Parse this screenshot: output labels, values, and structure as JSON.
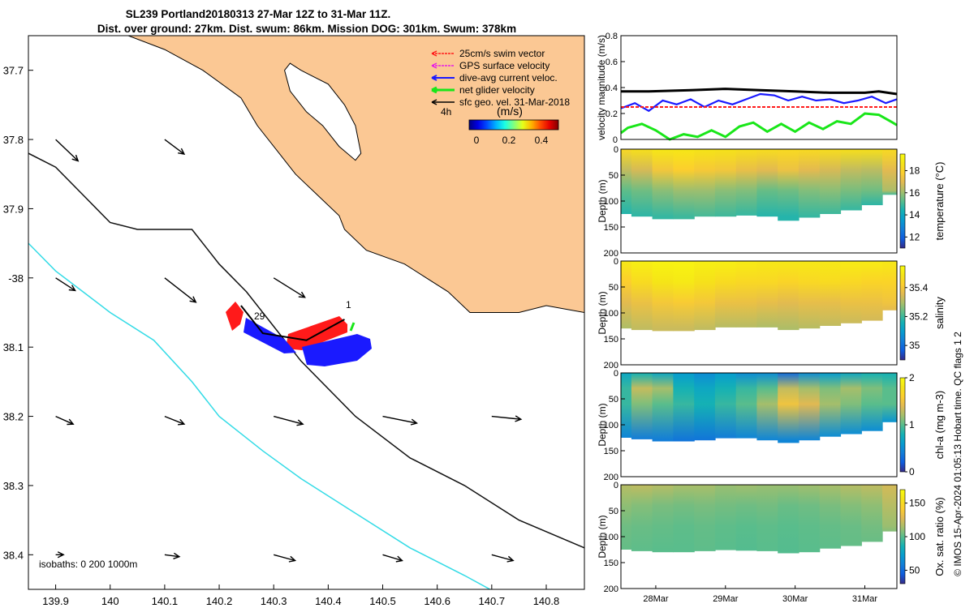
{
  "title": {
    "line1": "SL239 Portland20180313 27-Mar 12Z to 31-Mar 11Z.",
    "line2": "Dist. over ground: 27km. Dist. swum: 86km. Mission DOG: 301km. Swum: 378km"
  },
  "credit": "© IMOS 15-Apr-2024 01:05:13 Hobart time. QC flags 1  2",
  "colors": {
    "land": "#fbc894",
    "iso200": "#111111",
    "iso1000": "#33dbe6",
    "swim": "#ff1a1a",
    "gps": "#e61ae6",
    "diveavg": "#1a1aff",
    "netglider": "#19e619",
    "geovel": "#000000"
  },
  "chart_data": [
    {
      "type": "scatter",
      "name": "map",
      "xlim": [
        139.85,
        140.87
      ],
      "ylim": [
        -38.45,
        -37.65
      ],
      "xticks": [
        139.9,
        140,
        140.1,
        140.2,
        140.3,
        140.4,
        140.5,
        140.6,
        140.7,
        140.8
      ],
      "xtick_labels": [
        "139.9",
        "140",
        "140.1",
        "140.2",
        "140.3",
        "140.4",
        "140.5",
        "140.6",
        "140.7",
        "140.8"
      ],
      "yticks": [
        -37.7,
        -37.8,
        -37.9,
        -38,
        -38.1,
        -38.2,
        -38.3,
        -38.4
      ],
      "ytick_labels": [
        "37.7",
        "37.8",
        "37.9",
        "-38",
        "38.1",
        "38.2",
        "38.3",
        "38.4"
      ],
      "legend": [
        {
          "label": "25cm/s swim vector",
          "key": "swim"
        },
        {
          "label": "GPS surface velocity",
          "key": "gps"
        },
        {
          "label": "dive-avg current veloc.",
          "key": "diveavg"
        },
        {
          "label": "net glider velocity",
          "key": "netglider"
        },
        {
          "label": "sfc geo. vel. 31-Mar-2018",
          "key": "geovel"
        }
      ],
      "colorbar": {
        "label": "(m/s)",
        "ticks": [
          "0",
          "0.2",
          "0.4"
        ],
        "range": [
          0,
          0.5
        ]
      },
      "time_label": "4h",
      "isobath_label": "isobaths: 0   200  1000m",
      "track_start_label": "29",
      "track_end_label": "1",
      "coast": [
        [
          140.0,
          -37.64
        ],
        [
          140.1,
          -37.67
        ],
        [
          140.17,
          -37.7
        ],
        [
          140.24,
          -37.74
        ],
        [
          140.27,
          -37.78
        ],
        [
          140.31,
          -37.82
        ],
        [
          140.34,
          -37.85
        ],
        [
          140.38,
          -37.88
        ],
        [
          140.42,
          -37.91
        ],
        [
          140.43,
          -37.93
        ],
        [
          140.47,
          -37.96
        ],
        [
          140.54,
          -37.98
        ],
        [
          140.58,
          -38.0
        ],
        [
          140.62,
          -38.02
        ],
        [
          140.66,
          -38.05
        ],
        [
          140.7,
          -38.05
        ],
        [
          140.75,
          -38.05
        ],
        [
          140.8,
          -38.04
        ],
        [
          140.87,
          -38.05
        ]
      ],
      "lake": [
        [
          140.33,
          -37.69
        ],
        [
          140.35,
          -37.7
        ],
        [
          140.4,
          -37.72
        ],
        [
          140.43,
          -37.75
        ],
        [
          140.45,
          -37.78
        ],
        [
          140.46,
          -37.82
        ],
        [
          140.45,
          -37.83
        ],
        [
          140.42,
          -37.81
        ],
        [
          140.39,
          -37.78
        ],
        [
          140.36,
          -37.76
        ],
        [
          140.33,
          -37.73
        ],
        [
          140.32,
          -37.7
        ]
      ],
      "iso200": [
        [
          139.85,
          -37.82
        ],
        [
          139.9,
          -37.84
        ],
        [
          139.95,
          -37.88
        ],
        [
          140.0,
          -37.92
        ],
        [
          140.05,
          -37.93
        ],
        [
          140.15,
          -37.93
        ],
        [
          140.2,
          -37.98
        ],
        [
          140.25,
          -38.02
        ],
        [
          140.3,
          -38.07
        ],
        [
          140.35,
          -38.12
        ],
        [
          140.45,
          -38.2
        ],
        [
          140.55,
          -38.26
        ],
        [
          140.65,
          -38.3
        ],
        [
          140.75,
          -38.35
        ],
        [
          140.87,
          -38.39
        ]
      ],
      "iso1000": [
        [
          139.85,
          -37.95
        ],
        [
          139.9,
          -37.99
        ],
        [
          139.95,
          -38.02
        ],
        [
          140.0,
          -38.05
        ],
        [
          140.08,
          -38.09
        ],
        [
          140.15,
          -38.15
        ],
        [
          140.2,
          -38.2
        ],
        [
          140.28,
          -38.25
        ],
        [
          140.35,
          -38.29
        ],
        [
          140.45,
          -38.34
        ],
        [
          140.55,
          -38.39
        ],
        [
          140.65,
          -38.43
        ],
        [
          140.72,
          -38.46
        ],
        [
          140.82,
          -38.48
        ],
        [
          140.87,
          -38.5
        ]
      ],
      "glider_track": [
        [
          140.43,
          -38.06
        ],
        [
          140.36,
          -38.09
        ],
        [
          140.28,
          -38.08
        ],
        [
          140.24,
          -38.04
        ]
      ],
      "current_grid": [
        {
          "lon": 139.9,
          "lat": -37.8,
          "u": 0.23,
          "v": -0.22
        },
        {
          "lon": 140.1,
          "lat": -37.8,
          "u": 0.2,
          "v": -0.15
        },
        {
          "lon": 139.9,
          "lat": -38.0,
          "u": 0.2,
          "v": -0.13
        },
        {
          "lon": 140.1,
          "lat": -38.0,
          "u": 0.32,
          "v": -0.25
        },
        {
          "lon": 140.3,
          "lat": -38.0,
          "u": 0.32,
          "v": -0.2
        },
        {
          "lon": 139.9,
          "lat": -38.2,
          "u": 0.18,
          "v": -0.08
        },
        {
          "lon": 140.1,
          "lat": -38.2,
          "u": 0.2,
          "v": -0.08
        },
        {
          "lon": 140.3,
          "lat": -38.2,
          "u": 0.3,
          "v": -0.08
        },
        {
          "lon": 140.5,
          "lat": -38.2,
          "u": 0.35,
          "v": -0.07
        },
        {
          "lon": 140.7,
          "lat": -38.2,
          "u": 0.3,
          "v": -0.03
        },
        {
          "lon": 139.9,
          "lat": -38.4,
          "u": 0.08,
          "v": 0.0
        },
        {
          "lon": 140.1,
          "lat": -38.4,
          "u": 0.15,
          "v": -0.02
        },
        {
          "lon": 140.3,
          "lat": -38.4,
          "u": 0.22,
          "v": -0.06
        },
        {
          "lon": 140.5,
          "lat": -38.4,
          "u": 0.2,
          "v": -0.06
        },
        {
          "lon": 140.7,
          "lat": -38.4,
          "u": 0.22,
          "v": -0.06
        }
      ]
    },
    {
      "type": "line",
      "name": "velocity",
      "ylabel": "velocity magnitude (m/s)",
      "xlim": [
        27.5,
        31.46
      ],
      "ylim": [
        0,
        0.8
      ],
      "yticks": [
        0,
        0.2,
        0.4,
        0.6,
        0.8
      ],
      "ytick_labels": [
        "0",
        "0.2",
        "0.4",
        "0.6",
        "0.8"
      ],
      "series": [
        {
          "name": "sfc geo. vel.",
          "color_key": "geovel",
          "x": [
            27.5,
            27.9,
            28.5,
            29.0,
            29.5,
            30.0,
            30.5,
            31.0,
            31.2,
            31.46
          ],
          "values": [
            0.37,
            0.37,
            0.38,
            0.39,
            0.38,
            0.37,
            0.36,
            0.36,
            0.37,
            0.35
          ]
        },
        {
          "name": "dive-avg current veloc.",
          "color_key": "diveavg",
          "x": [
            27.5,
            27.7,
            27.9,
            28.1,
            28.3,
            28.5,
            28.7,
            28.9,
            29.1,
            29.3,
            29.5,
            29.7,
            29.9,
            30.1,
            30.3,
            30.5,
            30.7,
            30.9,
            31.1,
            31.3,
            31.46
          ],
          "values": [
            0.24,
            0.28,
            0.22,
            0.3,
            0.27,
            0.31,
            0.25,
            0.3,
            0.27,
            0.31,
            0.35,
            0.34,
            0.3,
            0.33,
            0.3,
            0.31,
            0.28,
            0.3,
            0.33,
            0.28,
            0.31
          ]
        },
        {
          "name": "swim vector",
          "color_key": "swim",
          "x": [
            27.5,
            31.46
          ],
          "values": [
            0.25,
            0.25
          ]
        },
        {
          "name": "net glider velocity",
          "color_key": "netglider",
          "x": [
            27.5,
            27.6,
            27.8,
            28.0,
            28.2,
            28.4,
            28.6,
            28.8,
            29.0,
            29.2,
            29.4,
            29.6,
            29.8,
            30.0,
            30.2,
            30.4,
            30.6,
            30.8,
            31.0,
            31.2,
            31.4,
            31.46
          ],
          "values": [
            0.05,
            0.09,
            0.12,
            0.07,
            0.0,
            0.04,
            0.02,
            0.07,
            0.02,
            0.1,
            0.13,
            0.06,
            0.12,
            0.06,
            0.13,
            0.08,
            0.14,
            0.12,
            0.2,
            0.19,
            0.13,
            0.11
          ]
        }
      ]
    },
    {
      "type": "heatmap",
      "name": "temperature",
      "cbar_label": "temperature (°C)",
      "ylabel": "Depth (m)",
      "ylim": [
        200,
        0
      ],
      "yticks": [
        0,
        50,
        100,
        150,
        200
      ],
      "ytick_labels": [
        "0",
        "50",
        "100",
        "150",
        "200"
      ],
      "clim": [
        11,
        19.5
      ],
      "cbar_ticks": [
        12,
        14,
        16,
        18
      ],
      "cbar_tick_labels": [
        "12",
        "14",
        "16",
        "18"
      ],
      "colormap": "parula",
      "x": [
        27.5,
        27.8,
        28.1,
        28.4,
        28.7,
        29.0,
        29.3,
        29.6,
        29.9,
        30.2,
        30.5,
        30.8,
        31.1,
        31.4
      ],
      "bottom_depth": [
        125,
        130,
        135,
        135,
        130,
        130,
        128,
        130,
        138,
        132,
        125,
        118,
        108,
        88
      ],
      "profile_depth": [
        0,
        40,
        80,
        130
      ],
      "values": [
        [
          18.2,
          18.5,
          18.8,
          18.8,
          18.7,
          18.6,
          18.5,
          18.4,
          18.3,
          18.3,
          18.4,
          18.5,
          18.5,
          18.3
        ],
        [
          16.5,
          16.8,
          17.5,
          17.8,
          17.6,
          17.5,
          17.2,
          17.0,
          17.3,
          17.0,
          16.8,
          16.5,
          16.4,
          17.0
        ],
        [
          15.3,
          15.5,
          15.8,
          16.0,
          16.0,
          15.8,
          15.7,
          15.4,
          15.5,
          15.7,
          15.8,
          15.6,
          15.5,
          16.2
        ],
        [
          14.6,
          14.7,
          14.8,
          14.9,
          15.0,
          14.9,
          14.8,
          14.6,
          14.6,
          14.8,
          14.9,
          14.8,
          14.7,
          15.0
        ]
      ]
    },
    {
      "type": "heatmap",
      "name": "salinity",
      "cbar_label": "salinity",
      "ylabel": "Depth (m)",
      "ylim": [
        200,
        0
      ],
      "yticks": [
        0,
        50,
        100,
        150,
        200
      ],
      "ytick_labels": [
        "0",
        "50",
        "100",
        "150",
        "200"
      ],
      "clim": [
        34.9,
        35.55
      ],
      "cbar_ticks": [
        35,
        35.2,
        35.4
      ],
      "cbar_tick_labels": [
        "35",
        "35.2",
        "35.4"
      ],
      "colormap": "parula",
      "x": [
        27.5,
        27.8,
        28.1,
        28.4,
        28.7,
        29.0,
        29.3,
        29.6,
        29.9,
        30.2,
        30.5,
        30.8,
        31.1,
        31.4
      ],
      "bottom_depth": [
        130,
        133,
        135,
        135,
        133,
        128,
        128,
        128,
        133,
        130,
        125,
        120,
        115,
        95
      ],
      "profile_depth": [
        0,
        40,
        80,
        130
      ],
      "values": [
        [
          35.5,
          35.52,
          35.53,
          35.53,
          35.52,
          35.52,
          35.51,
          35.5,
          35.5,
          35.5,
          35.5,
          35.51,
          35.51,
          35.5
        ],
        [
          35.42,
          35.46,
          35.49,
          35.5,
          35.48,
          35.46,
          35.45,
          35.45,
          35.44,
          35.45,
          35.46,
          35.45,
          35.44,
          35.44
        ],
        [
          35.36,
          35.38,
          35.4,
          35.41,
          35.4,
          35.38,
          35.38,
          35.37,
          35.36,
          35.37,
          35.37,
          35.38,
          35.38,
          35.39
        ],
        [
          35.3,
          35.32,
          35.33,
          35.33,
          35.32,
          35.31,
          35.31,
          35.3,
          35.3,
          35.31,
          35.32,
          35.33,
          35.34,
          35.36
        ]
      ]
    },
    {
      "type": "heatmap",
      "name": "chl-a",
      "cbar_label": "chl-a (mg m-3)",
      "ylabel": "Depth (m)",
      "ylim": [
        200,
        0
      ],
      "yticks": [
        0,
        50,
        100,
        150,
        200
      ],
      "ytick_labels": [
        "0",
        "50",
        "100",
        "150",
        "200"
      ],
      "clim": [
        0,
        2
      ],
      "cbar_ticks": [
        0,
        1,
        2
      ],
      "cbar_tick_labels": [
        "0",
        "1",
        "2"
      ],
      "colormap": "parula",
      "x": [
        27.5,
        27.8,
        28.1,
        28.4,
        28.7,
        29.0,
        29.3,
        29.6,
        29.9,
        30.2,
        30.5,
        30.8,
        31.1,
        31.4
      ],
      "bottom_depth": [
        125,
        128,
        132,
        132,
        130,
        126,
        126,
        130,
        135,
        130,
        123,
        118,
        112,
        95
      ],
      "profile_depth": [
        0,
        30,
        60,
        130
      ],
      "values": [
        [
          0.7,
          0.8,
          0.7,
          0.6,
          0.5,
          0.6,
          0.5,
          0.5,
          0.3,
          0.5,
          0.6,
          0.7,
          0.8,
          0.8
        ],
        [
          0.9,
          1.3,
          1.2,
          0.8,
          0.7,
          0.8,
          0.9,
          1.0,
          1.3,
          1.2,
          1.1,
          1.2,
          1.1,
          1.0
        ],
        [
          0.9,
          1.1,
          1.0,
          0.9,
          0.8,
          0.9,
          1.0,
          1.2,
          1.5,
          1.4,
          1.2,
          1.1,
          1.0,
          1.0
        ],
        [
          0.45,
          0.4,
          0.4,
          0.35,
          0.35,
          0.4,
          0.45,
          0.45,
          0.45,
          0.45,
          0.5,
          0.5,
          0.5,
          0.55
        ]
      ]
    },
    {
      "type": "heatmap",
      "name": "oxygen",
      "cbar_label": "Ox. sat. ratio (%)",
      "ylabel": "Depth (m)",
      "ylim": [
        200,
        0
      ],
      "yticks": [
        0,
        50,
        100,
        150,
        200
      ],
      "ytick_labels": [
        "0",
        "50",
        "100",
        "150",
        "200"
      ],
      "clim": [
        30,
        170
      ],
      "cbar_ticks": [
        50,
        100,
        150
      ],
      "cbar_tick_labels": [
        "50",
        "100",
        "150"
      ],
      "colormap": "parula",
      "xticks": [
        28,
        29,
        30,
        31
      ],
      "xtick_labels": [
        "28Mar",
        "29Mar",
        "30Mar",
        "31Mar"
      ],
      "x": [
        27.5,
        27.8,
        28.1,
        28.4,
        28.7,
        29.0,
        29.3,
        29.6,
        29.9,
        30.2,
        30.5,
        30.8,
        31.1,
        31.4
      ],
      "bottom_depth": [
        125,
        128,
        130,
        130,
        128,
        126,
        127,
        128,
        132,
        130,
        123,
        118,
        110,
        90
      ],
      "profile_depth": [
        0,
        40,
        80,
        130
      ],
      "values": [
        [
          118,
          120,
          118,
          115,
          115,
          112,
          113,
          112,
          112,
          113,
          115,
          118,
          120,
          125
        ],
        [
          110,
          108,
          106,
          105,
          106,
          105,
          104,
          105,
          103,
          104,
          106,
          108,
          110,
          118
        ],
        [
          104,
          103,
          102,
          101,
          102,
          101,
          100,
          101,
          100,
          101,
          102,
          103,
          105,
          112
        ],
        [
          102,
          101,
          100,
          100,
          101,
          100,
          99,
          100,
          99,
          100,
          101,
          102,
          103,
          108
        ]
      ]
    }
  ]
}
